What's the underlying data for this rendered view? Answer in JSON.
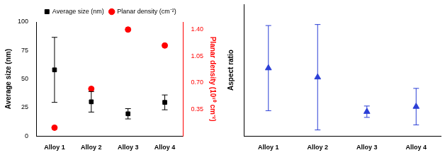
{
  "chart_data": [
    {
      "type": "scatter",
      "categories": [
        "Alloy 1",
        "Alloy 2",
        "Alloy 3",
        "Alloy 4"
      ],
      "ylabel": "Average size (nm)",
      "y2label": "Planar density (10¹⁰ cm⁻²)",
      "ylim": [
        0,
        100
      ],
      "yticks": [
        0,
        25,
        50,
        75,
        100
      ],
      "y2lim": [
        0,
        1.5
      ],
      "y2ticks": [
        0.35,
        {
          "value": 0.7,
          "label": "0.70"
        },
        1.05,
        {
          "value": 1.4,
          "label": "1.40"
        }
      ],
      "grid": false,
      "legend": "top",
      "series": [
        {
          "name": "Average size (nm)",
          "color": "#000000",
          "marker": "square",
          "values": [
            58,
            30,
            19.5,
            29.5
          ],
          "errors": [
            28.5,
            9,
            4.5,
            6.5
          ]
        },
        {
          "name": "Planar density (cm⁻²)",
          "color": "#ff0000",
          "marker": "circle",
          "axis": "y2",
          "values": [
            0.11,
            0.62,
            1.4,
            1.19
          ]
        }
      ]
    },
    {
      "type": "scatter",
      "categories": [
        "Alloy 1",
        "Alloy 2",
        "Alloy 3",
        "Alloy 4"
      ],
      "ylabel": "Aspect ratio",
      "ylim": [
        0,
        6.5
      ],
      "tick_labels": "x",
      "grid": false,
      "series": [
        {
          "color": "#2b3fd6",
          "marker": "triangle",
          "values": [
            3.35,
            2.9,
            1.2,
            1.45
          ],
          "errors": [
            2.1,
            2.6,
            0.28,
            0.9
          ]
        }
      ]
    }
  ]
}
